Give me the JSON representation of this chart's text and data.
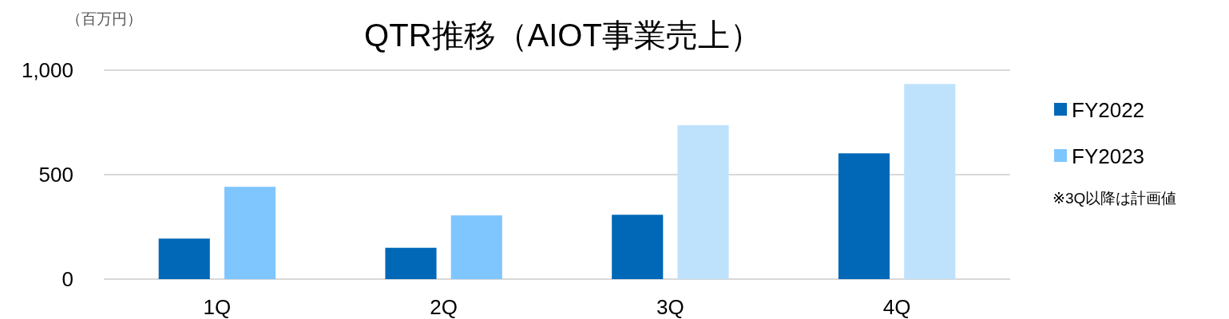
{
  "chart_data": {
    "type": "bar",
    "title": "QTR推移（AIOT事業売上）",
    "ylabel": "（百万円）",
    "categories": [
      "1Q",
      "2Q",
      "3Q",
      "4Q"
    ],
    "series": [
      {
        "name": "FY2022",
        "color": "#0068b7",
        "values": [
          194,
          150,
          308,
          602
        ]
      },
      {
        "name": "FY2023",
        "color": "#7fc6ff",
        "colors": [
          "#7fc6ff",
          "#7fc6ff",
          "#bfe2fc",
          "#bfe2fc"
        ],
        "values": [
          442,
          305,
          737,
          934
        ]
      }
    ],
    "ylim": [
      0,
      1000
    ],
    "yticks": [
      0,
      500,
      {
        "value": 1000,
        "label": "1,000"
      }
    ],
    "grid": "y",
    "legend": "right",
    "annotations": [
      "※3Q以降は計画値"
    ]
  }
}
